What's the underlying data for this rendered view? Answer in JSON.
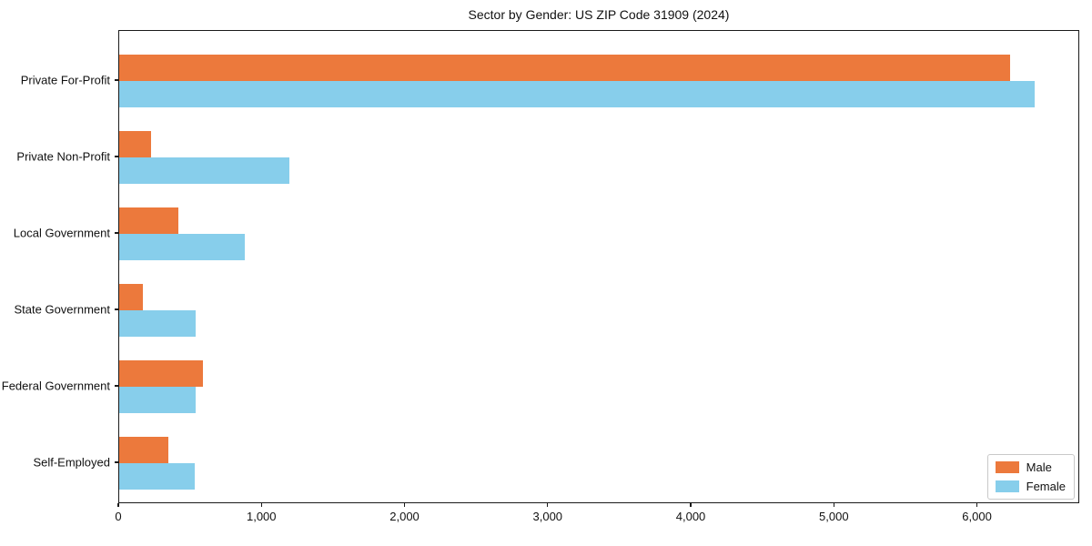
{
  "chart_data": {
    "type": "bar",
    "orientation": "horizontal",
    "title": "Sector by Gender: US ZIP Code 31909 (2024)",
    "xlabel": "",
    "ylabel": "",
    "categories": [
      "Private For-Profit",
      "Private Non-Profit",
      "Local Government",
      "State Government",
      "Federal Government",
      "Self-Employed"
    ],
    "series": [
      {
        "name": "Male",
        "color": "#ec793c",
        "values": [
          6225,
          225,
          415,
          167,
          585,
          340
        ]
      },
      {
        "name": "Female",
        "color": "#87ceeb",
        "values": [
          6395,
          1190,
          880,
          535,
          535,
          530
        ]
      }
    ],
    "x_ticks": [
      0,
      1000,
      2000,
      3000,
      4000,
      5000,
      6000
    ],
    "x_tick_labels": [
      "0",
      "1,000",
      "2,000",
      "3,000",
      "4,000",
      "5,000",
      "6,000"
    ],
    "xlim": [
      0,
      6715
    ],
    "grid": false,
    "legend_position": "lower right"
  }
}
